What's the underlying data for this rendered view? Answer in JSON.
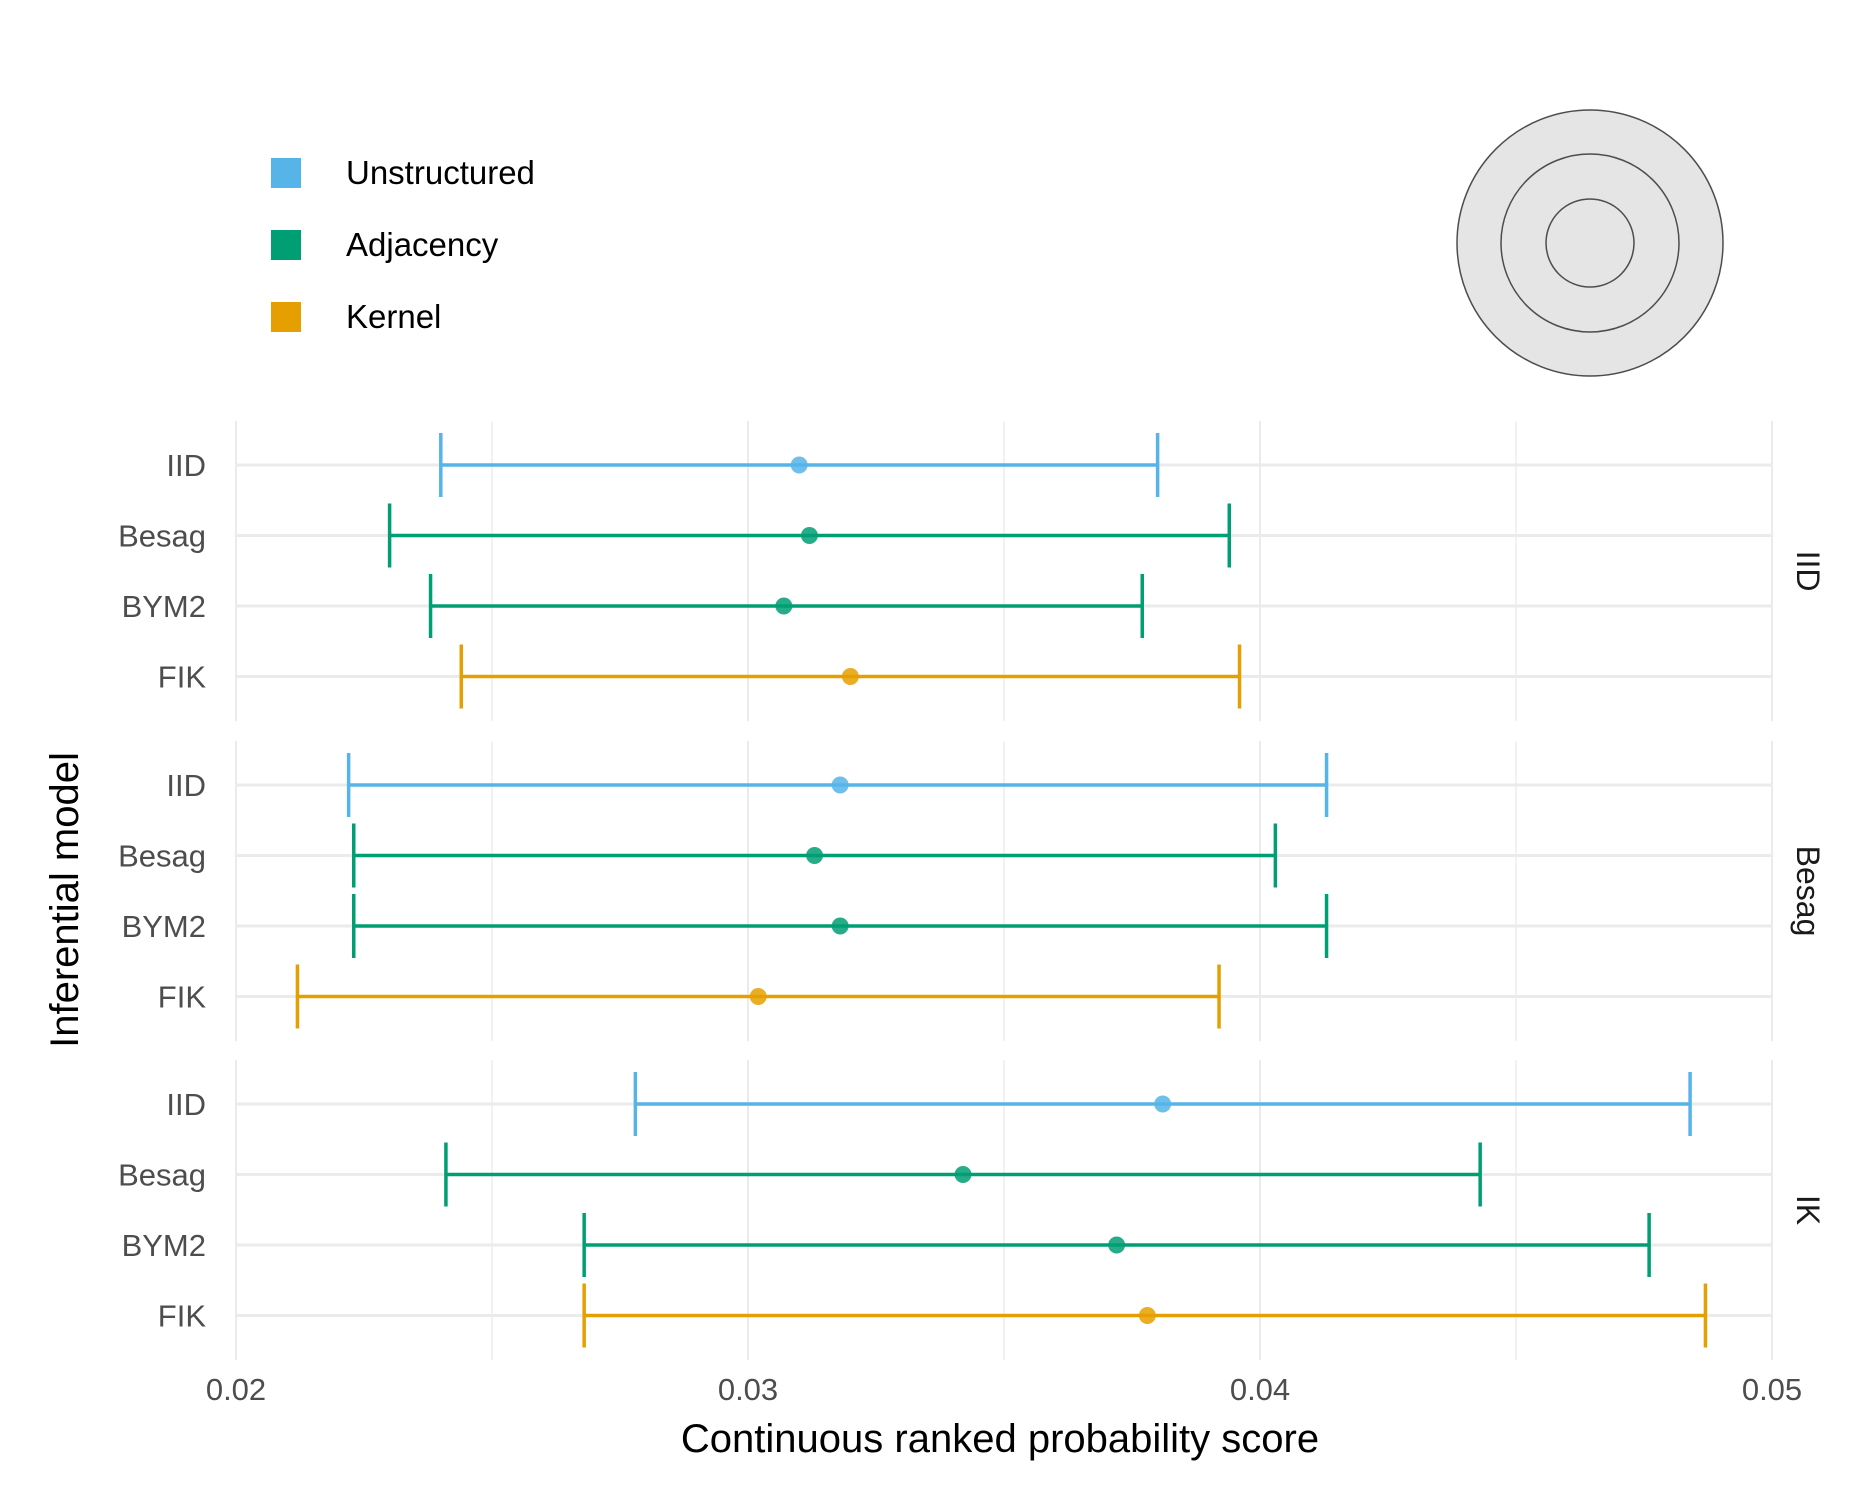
{
  "chart_data": {
    "type": "scatter",
    "subtype": "point-range",
    "xlabel": "Continuous ranked probability score",
    "ylabel": "Inferential model",
    "xlim": [
      0.02,
      0.05
    ],
    "x_ticks": [
      "0.02",
      "0.03",
      "0.04",
      "0.05"
    ],
    "x_tick_values": [
      0.02,
      0.03,
      0.04,
      0.05
    ],
    "x_minor_gridlines": [
      0.025,
      0.035,
      0.045
    ],
    "grid": true,
    "legend": {
      "placement": "top-left",
      "items": [
        {
          "label": "Unstructured",
          "color": "#56B4E9"
        },
        {
          "label": "Adjacency",
          "color": "#009E73"
        },
        {
          "label": "Kernel",
          "color": "#E69F00"
        }
      ]
    },
    "target_icon": "concentric-circles-icon",
    "categories": [
      "IID",
      "Besag",
      "BYM2",
      "FIK"
    ],
    "panels": [
      {
        "strip": "IID",
        "rows": [
          {
            "model": "IID",
            "group": "Unstructured",
            "low": 0.024,
            "mid": 0.031,
            "high": 0.038
          },
          {
            "model": "Besag",
            "group": "Adjacency",
            "low": 0.023,
            "mid": 0.0312,
            "high": 0.0394
          },
          {
            "model": "BYM2",
            "group": "Adjacency",
            "low": 0.0238,
            "mid": 0.0307,
            "high": 0.0377
          },
          {
            "model": "FIK",
            "group": "Kernel",
            "low": 0.0244,
            "mid": 0.032,
            "high": 0.0396
          }
        ]
      },
      {
        "strip": "Besag",
        "rows": [
          {
            "model": "IID",
            "group": "Unstructured",
            "low": 0.0222,
            "mid": 0.0318,
            "high": 0.0413
          },
          {
            "model": "Besag",
            "group": "Adjacency",
            "low": 0.0223,
            "mid": 0.0313,
            "high": 0.0403
          },
          {
            "model": "BYM2",
            "group": "Adjacency",
            "low": 0.0223,
            "mid": 0.0318,
            "high": 0.0413
          },
          {
            "model": "FIK",
            "group": "Kernel",
            "low": 0.0212,
            "mid": 0.0302,
            "high": 0.0392
          }
        ]
      },
      {
        "strip": "IK",
        "rows": [
          {
            "model": "IID",
            "group": "Unstructured",
            "low": 0.0278,
            "mid": 0.0381,
            "high": 0.0484
          },
          {
            "model": "Besag",
            "group": "Adjacency",
            "low": 0.0241,
            "mid": 0.0342,
            "high": 0.0443
          },
          {
            "model": "BYM2",
            "group": "Adjacency",
            "low": 0.0268,
            "mid": 0.0372,
            "high": 0.0476
          },
          {
            "model": "FIK",
            "group": "Kernel",
            "low": 0.0268,
            "mid": 0.0378,
            "high": 0.0487
          }
        ]
      }
    ]
  }
}
